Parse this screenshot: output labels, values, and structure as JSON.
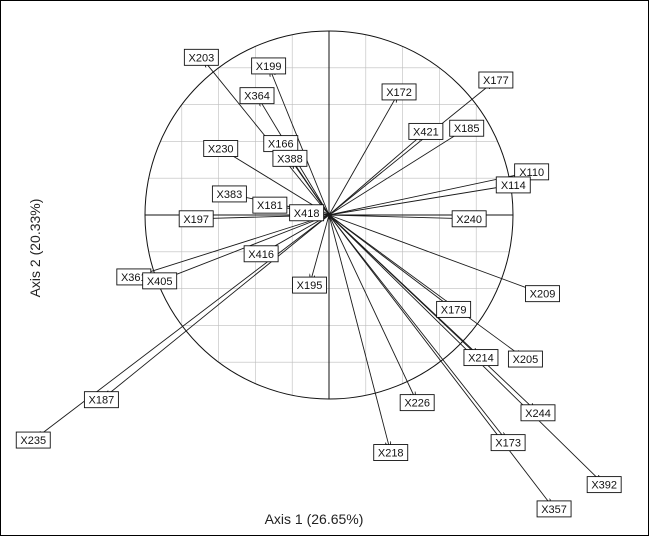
{
  "chart_data": {
    "type": "scatter",
    "subtype": "pca-correlation-circle",
    "xlabel": "Axis 1 (26.65%)",
    "ylabel": "Axis 2 (20.33%)",
    "xlim": [
      -1.95,
      1.75
    ],
    "ylim": [
      -1.85,
      1.05
    ],
    "grid": true,
    "unit_circle": true,
    "colors": {
      "arrows": "#1a1a1a",
      "grid": "#bdbdbd",
      "circle": "#111111"
    },
    "vectors": [
      {
        "name": "X203",
        "x": -0.68,
        "y": 0.84
      },
      {
        "name": "X199",
        "x": -0.32,
        "y": 0.79
      },
      {
        "name": "X364",
        "x": -0.38,
        "y": 0.63
      },
      {
        "name": "X230",
        "x": -0.57,
        "y": 0.35
      },
      {
        "name": "X166",
        "x": -0.25,
        "y": 0.37
      },
      {
        "name": "X388",
        "x": -0.2,
        "y": 0.29
      },
      {
        "name": "X383",
        "x": -0.52,
        "y": 0.11
      },
      {
        "name": "X181",
        "x": -0.3,
        "y": 0.05
      },
      {
        "name": "X197",
        "x": -0.7,
        "y": -0.02
      },
      {
        "name": "X418",
        "x": -0.1,
        "y": 0.01
      },
      {
        "name": "X416",
        "x": -0.35,
        "y": -0.2
      },
      {
        "name": "X361",
        "x": -1.04,
        "y": -0.33
      },
      {
        "name": "X405",
        "x": -0.9,
        "y": -0.35
      },
      {
        "name": "X195",
        "x": -0.1,
        "y": -0.36
      },
      {
        "name": "X187",
        "x": -1.22,
        "y": -0.99
      },
      {
        "name": "X235",
        "x": -1.59,
        "y": -1.21
      },
      {
        "name": "X172",
        "x": 0.37,
        "y": 0.65
      },
      {
        "name": "X177",
        "x": 0.89,
        "y": 0.72
      },
      {
        "name": "X421",
        "x": 0.51,
        "y": 0.44
      },
      {
        "name": "X185",
        "x": 0.73,
        "y": 0.46
      },
      {
        "name": "X110",
        "x": 1.08,
        "y": 0.23
      },
      {
        "name": "X114",
        "x": 0.98,
        "y": 0.16
      },
      {
        "name": "X240",
        "x": 0.74,
        "y": -0.02
      },
      {
        "name": "X209",
        "x": 1.14,
        "y": -0.42
      },
      {
        "name": "X179",
        "x": 0.66,
        "y": -0.5
      },
      {
        "name": "X214",
        "x": 0.81,
        "y": -0.76
      },
      {
        "name": "X205",
        "x": 1.05,
        "y": -0.77
      },
      {
        "name": "X244",
        "x": 1.12,
        "y": -1.06
      },
      {
        "name": "X226",
        "x": 0.47,
        "y": -1.0
      },
      {
        "name": "X218",
        "x": 0.33,
        "y": -1.27
      },
      {
        "name": "X173",
        "x": 0.96,
        "y": -1.22
      },
      {
        "name": "X392",
        "x": 1.48,
        "y": -1.45
      },
      {
        "name": "X357",
        "x": 1.21,
        "y": -1.58
      }
    ]
  }
}
